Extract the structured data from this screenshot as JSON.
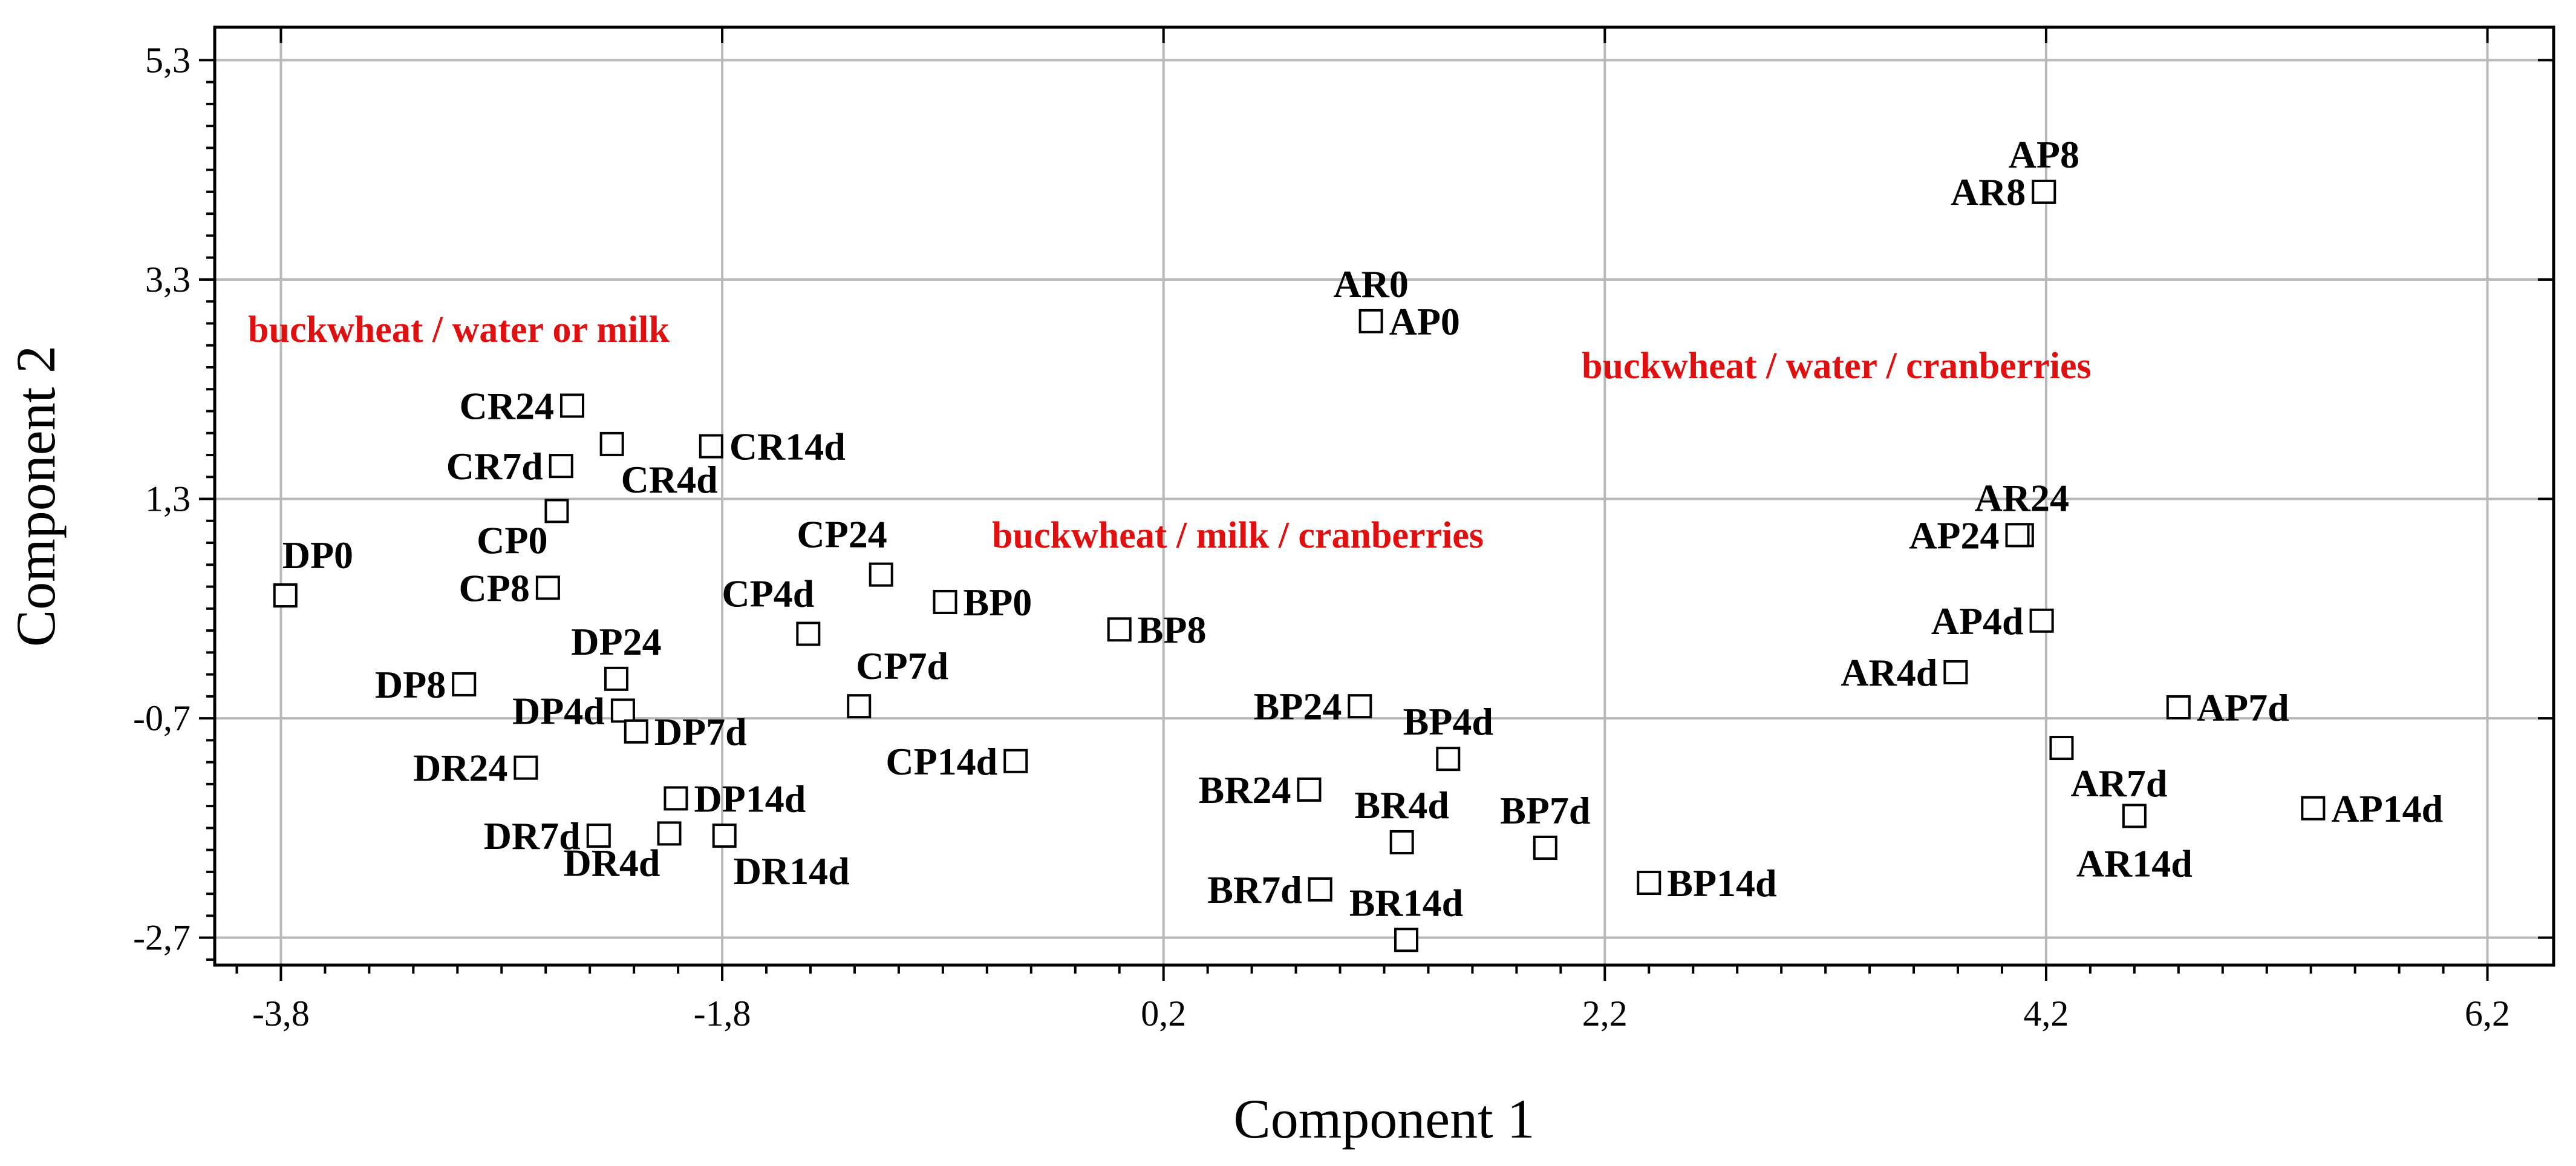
{
  "chart_data": {
    "type": "scatter",
    "xlabel": "Component 1",
    "ylabel": "Component 2",
    "xlim": [
      -4.1,
      6.5
    ],
    "ylim": [
      -2.95,
      5.6
    ],
    "grid": true,
    "xticks": [
      -3.8,
      -1.8,
      0.2,
      2.2,
      4.2,
      6.2
    ],
    "yticks": [
      -2.7,
      -0.7,
      1.3,
      3.3,
      5.3
    ],
    "xtick_labels": [
      "-3,8",
      "-1,8",
      "0,2",
      "2,2",
      "4,2",
      "6,2"
    ],
    "ytick_labels": [
      "-2,7",
      "-0,7",
      "1,3",
      "3,3",
      "5,3"
    ],
    "group_annotations": [
      {
        "text": "buckwheat /  water or milk",
        "color": "#e01010"
      },
      {
        "text": "buckwheat /  milk /  cranberries",
        "color": "#e01010"
      },
      {
        "text": "buckwheat /  water /  cranberries",
        "color": "#e01010"
      }
    ],
    "points": [
      {
        "name": "DP0",
        "x": -3.78,
        "y": 0.42,
        "label": "DP0",
        "anchor": "above-right"
      },
      {
        "name": "DP8",
        "x": -2.97,
        "y": -0.39,
        "label": "DP8",
        "anchor": "left"
      },
      {
        "name": "DP24",
        "x": -2.28,
        "y": -0.34,
        "label": "DP24",
        "anchor": "above"
      },
      {
        "name": "DP4d",
        "x": -2.25,
        "y": -0.63,
        "label": "DP4d",
        "anchor": "left"
      },
      {
        "name": "DP7d",
        "x": -2.19,
        "y": -0.82,
        "label": "DP7d",
        "anchor": "right"
      },
      {
        "name": "DP14d",
        "x": -2.01,
        "y": -1.43,
        "label": "DP14d",
        "anchor": "right"
      },
      {
        "name": "DR24",
        "x": -2.69,
        "y": -1.15,
        "label": "DR24",
        "anchor": "left"
      },
      {
        "name": "DR7d",
        "x": -2.36,
        "y": -1.77,
        "label": "DR7d",
        "anchor": "left"
      },
      {
        "name": "DR4d",
        "x": -2.04,
        "y": -1.75,
        "label": "DR4d",
        "anchor": "below-left"
      },
      {
        "name": "DR14d",
        "x": -1.79,
        "y": -1.77,
        "label": "DR14d",
        "anchor": "below-right"
      },
      {
        "name": "CP0",
        "x": -2.55,
        "y": 1.19,
        "label": "CP0",
        "anchor": "below-left"
      },
      {
        "name": "CP8",
        "x": -2.59,
        "y": 0.49,
        "label": "CP8",
        "anchor": "left"
      },
      {
        "name": "CP24",
        "x": -1.08,
        "y": 0.61,
        "label": "CP24",
        "anchor": "above-left"
      },
      {
        "name": "CP4d",
        "x": -1.41,
        "y": 0.07,
        "label": "CP4d",
        "anchor": "above-left"
      },
      {
        "name": "CP7d",
        "x": -1.18,
        "y": -0.59,
        "label": "CP7d",
        "anchor": "above-right"
      },
      {
        "name": "CP14d",
        "x": -0.47,
        "y": -1.09,
        "label": "CP14d",
        "anchor": "left"
      },
      {
        "name": "CR24",
        "x": -2.48,
        "y": 2.15,
        "label": "CR24",
        "anchor": "left"
      },
      {
        "name": "CR7d",
        "x": -2.53,
        "y": 1.6,
        "label": "CR7d",
        "anchor": "left"
      },
      {
        "name": "CR4d",
        "x": -2.3,
        "y": 1.8,
        "label": "CR4d",
        "anchor": "below-right"
      },
      {
        "name": "CR14d",
        "x": -1.85,
        "y": 1.78,
        "label": "CR14d",
        "anchor": "right"
      },
      {
        "name": "BP0",
        "x": -0.79,
        "y": 0.36,
        "label": "BP0",
        "anchor": "right"
      },
      {
        "name": "BP8",
        "x": 0.0,
        "y": 0.11,
        "label": "BP8",
        "anchor": "right"
      },
      {
        "name": "BP24",
        "x": 1.09,
        "y": -0.59,
        "label": "BP24",
        "anchor": "left"
      },
      {
        "name": "BP4d",
        "x": 1.49,
        "y": -1.07,
        "label": "BP4d",
        "anchor": "above"
      },
      {
        "name": "BP7d",
        "x": 1.93,
        "y": -1.88,
        "label": "BP7d",
        "anchor": "above"
      },
      {
        "name": "BP14d",
        "x": 2.4,
        "y": -2.2,
        "label": "BP14d",
        "anchor": "right"
      },
      {
        "name": "BR24",
        "x": 0.86,
        "y": -1.35,
        "label": "BR24",
        "anchor": "left"
      },
      {
        "name": "BR7d",
        "x": 0.91,
        "y": -2.26,
        "label": "BR7d",
        "anchor": "left"
      },
      {
        "name": "BR4d",
        "x": 1.28,
        "y": -1.83,
        "label": "BR4d",
        "anchor": "above"
      },
      {
        "name": "BR14d",
        "x": 1.3,
        "y": -2.72,
        "label": "BR14d",
        "anchor": "above"
      },
      {
        "name": "AR0",
        "x": 1.14,
        "y": 2.92,
        "label": "AR0",
        "anchor": "above"
      },
      {
        "name": "AP0",
        "x": 1.14,
        "y": 2.92,
        "label": "AP0",
        "anchor": "right"
      },
      {
        "name": "AR8",
        "x": 4.19,
        "y": 4.1,
        "label": "AR8",
        "anchor": "left"
      },
      {
        "name": "AP8",
        "x": 4.19,
        "y": 4.1,
        "label": "AP8",
        "anchor": "above"
      },
      {
        "name": "AR24",
        "x": 4.09,
        "y": 0.97,
        "label": "AR24",
        "anchor": "above"
      },
      {
        "name": "AP24",
        "x": 4.07,
        "y": 0.97,
        "label": "AP24",
        "anchor": "left"
      },
      {
        "name": "AP4d",
        "x": 4.18,
        "y": 0.19,
        "label": "AP4d",
        "anchor": "left"
      },
      {
        "name": "AR4d",
        "x": 3.79,
        "y": -0.28,
        "label": "AR4d",
        "anchor": "left"
      },
      {
        "name": "AP7d",
        "x": 4.8,
        "y": -0.6,
        "label": "AP7d",
        "anchor": "right"
      },
      {
        "name": "AR7d",
        "x": 4.27,
        "y": -0.97,
        "label": "AR7d",
        "anchor": "below-right"
      },
      {
        "name": "AR14d",
        "x": 4.6,
        "y": -1.59,
        "label": "AR14d",
        "anchor": "below"
      },
      {
        "name": "AP14d",
        "x": 5.41,
        "y": -1.52,
        "label": "AP14d",
        "anchor": "right"
      }
    ]
  }
}
